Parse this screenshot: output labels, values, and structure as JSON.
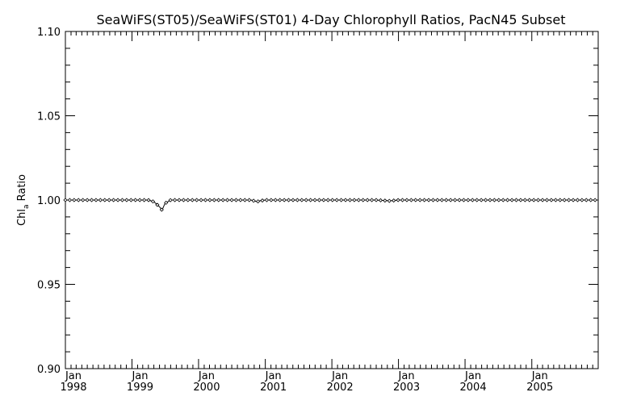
{
  "chart_data": {
    "type": "line",
    "title": "SeaWiFS(ST05)/SeaWiFS(ST01) 4-Day Chlorophyll Ratios, PacN45 Subset",
    "xlabel": "",
    "ylabel_main": "Chl",
    "ylabel_sub": "a",
    "ylabel_rest": " Ratio",
    "ylim": [
      0.9,
      1.1
    ],
    "yticks": [
      "0.90",
      "0.95",
      "1.00",
      "1.05",
      "1.10"
    ],
    "xlim": [
      "1998-01-01",
      "2005-12-31"
    ],
    "xtick_month": "Jan",
    "xticks": [
      "1998",
      "1999",
      "2000",
      "2001",
      "2002",
      "2003",
      "2004",
      "2005"
    ],
    "grid": false,
    "series": [
      {
        "marker": "diamond",
        "x": [
          "1998-01-01",
          "1998-05-01",
          "1998-09-01",
          "1999-01-01",
          "1999-04-01",
          "1999-05-01",
          "1999-06-01",
          "1999-06-15",
          "1999-07-01",
          "1999-08-01",
          "1999-09-01",
          "2000-01-01",
          "2000-05-01",
          "2000-09-01",
          "2000-10-15",
          "2000-11-01",
          "2000-11-15",
          "2000-12-01",
          "2001-01-01",
          "2001-05-01",
          "2001-09-01",
          "2002-01-01",
          "2002-05-01",
          "2002-09-01",
          "2002-11-15",
          "2003-01-01",
          "2003-05-01",
          "2003-09-01",
          "2004-01-01",
          "2004-05-01",
          "2004-09-01",
          "2005-01-01",
          "2005-05-01",
          "2005-09-01",
          "2005-12-31"
        ],
        "y": [
          1.0,
          1.0,
          1.0,
          1.0,
          1.0,
          0.999,
          0.996,
          0.994,
          0.998,
          1.0,
          1.0,
          1.0,
          1.0,
          1.0,
          1.0,
          0.9995,
          0.999,
          0.9995,
          1.0,
          1.0,
          1.0,
          1.0,
          1.0,
          1.0,
          0.9995,
          1.0,
          1.0,
          1.0,
          1.0,
          1.0,
          1.0,
          1.0,
          1.0,
          1.0,
          1.0
        ]
      }
    ]
  }
}
